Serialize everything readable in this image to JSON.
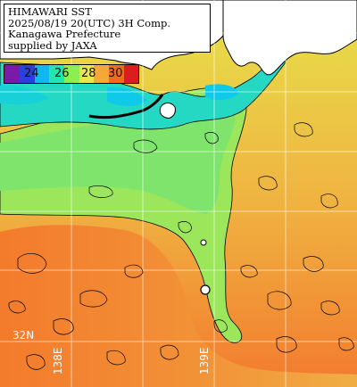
{
  "title": {
    "lines": [
      "HIMAWARI SST",
      "2025/08/19 20(UTC) 3H Comp.",
      "Kanagawa Prefecture",
      "supplied by JAXA"
    ]
  },
  "colorbar": {
    "labels": [
      "24",
      "26",
      "28",
      "30"
    ],
    "unit": "",
    "colors": [
      "#7a1aa8",
      "#2a3fe0",
      "#10b8f0",
      "#20e6b0",
      "#8cef50",
      "#e8e64a",
      "#f5a838",
      "#f06a22",
      "#d81e1e"
    ]
  },
  "grid": {
    "lat_label": "32N",
    "lon_labels": [
      "138E",
      "139E"
    ]
  },
  "colors": {
    "land": "#ffffff",
    "gridline": "#ffffff",
    "contour": "#000000",
    "warm": "#f28a3a",
    "cool": "#8ee860",
    "cold": "#20d8c8"
  }
}
